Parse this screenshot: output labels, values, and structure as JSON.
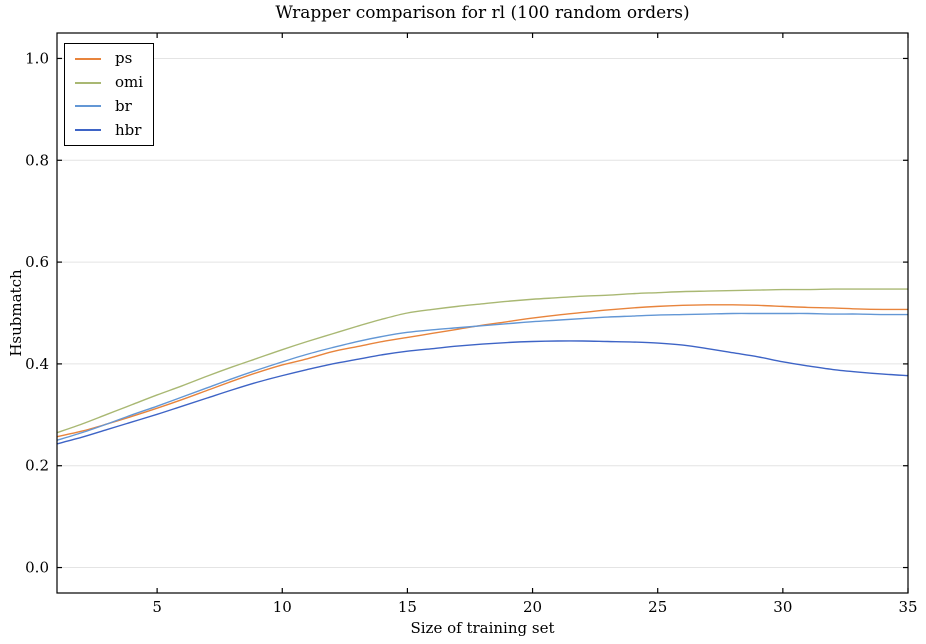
{
  "chart_data": {
    "type": "line",
    "title": "Wrapper comparison for rl (100 random orders)",
    "xlabel": "Size of training set",
    "ylabel": "Hsubmatch",
    "xlim": [
      1,
      35
    ],
    "ylim": [
      -0.05,
      1.05
    ],
    "x_ticks": [
      5,
      10,
      15,
      20,
      25,
      30,
      35
    ],
    "y_ticks": [
      0.0,
      0.2,
      0.4,
      0.6,
      0.8,
      1.0
    ],
    "y_tick_labels": [
      "0.0",
      "0.2",
      "0.4",
      "0.6",
      "0.8",
      "1.0"
    ],
    "grid": "horizontal-only",
    "legend_position": "upper-left",
    "axis_color": "#000000",
    "grid_color": "#e4e4e4",
    "x": [
      1,
      2,
      3,
      4,
      5,
      6,
      7,
      8,
      9,
      10,
      11,
      12,
      13,
      14,
      15,
      16,
      17,
      18,
      19,
      20,
      21,
      22,
      23,
      24,
      25,
      26,
      27,
      28,
      29,
      30,
      31,
      32,
      33,
      34,
      35
    ],
    "series": [
      {
        "name": "ps",
        "color": "#e8843c",
        "values": [
          0.257,
          0.268,
          0.282,
          0.297,
          0.313,
          0.33,
          0.348,
          0.366,
          0.383,
          0.398,
          0.41,
          0.424,
          0.434,
          0.444,
          0.452,
          0.46,
          0.468,
          0.476,
          0.483,
          0.49,
          0.496,
          0.501,
          0.506,
          0.51,
          0.513,
          0.515,
          0.516,
          0.516,
          0.515,
          0.513,
          0.511,
          0.51,
          0.508,
          0.507,
          0.507
        ]
      },
      {
        "name": "omi",
        "color": "#a9b873",
        "values": [
          0.265,
          0.282,
          0.301,
          0.32,
          0.339,
          0.357,
          0.376,
          0.394,
          0.411,
          0.428,
          0.444,
          0.459,
          0.474,
          0.488,
          0.5,
          0.507,
          0.513,
          0.518,
          0.523,
          0.527,
          0.53,
          0.533,
          0.535,
          0.538,
          0.54,
          0.542,
          0.543,
          0.544,
          0.545,
          0.546,
          0.546,
          0.547,
          0.547,
          0.547,
          0.547
        ]
      },
      {
        "name": "br",
        "color": "#6397d5",
        "values": [
          0.25,
          0.265,
          0.282,
          0.3,
          0.317,
          0.335,
          0.353,
          0.371,
          0.388,
          0.404,
          0.419,
          0.432,
          0.444,
          0.454,
          0.462,
          0.467,
          0.471,
          0.475,
          0.479,
          0.483,
          0.486,
          0.489,
          0.492,
          0.494,
          0.496,
          0.497,
          0.498,
          0.499,
          0.499,
          0.499,
          0.499,
          0.498,
          0.498,
          0.497,
          0.497
        ]
      },
      {
        "name": "hbr",
        "color": "#3e64c6",
        "values": [
          0.243,
          0.256,
          0.271,
          0.286,
          0.301,
          0.317,
          0.333,
          0.349,
          0.364,
          0.377,
          0.389,
          0.4,
          0.409,
          0.418,
          0.425,
          0.43,
          0.435,
          0.439,
          0.442,
          0.444,
          0.445,
          0.445,
          0.444,
          0.443,
          0.441,
          0.437,
          0.43,
          0.422,
          0.414,
          0.404,
          0.396,
          0.389,
          0.384,
          0.38,
          0.377
        ]
      }
    ]
  }
}
